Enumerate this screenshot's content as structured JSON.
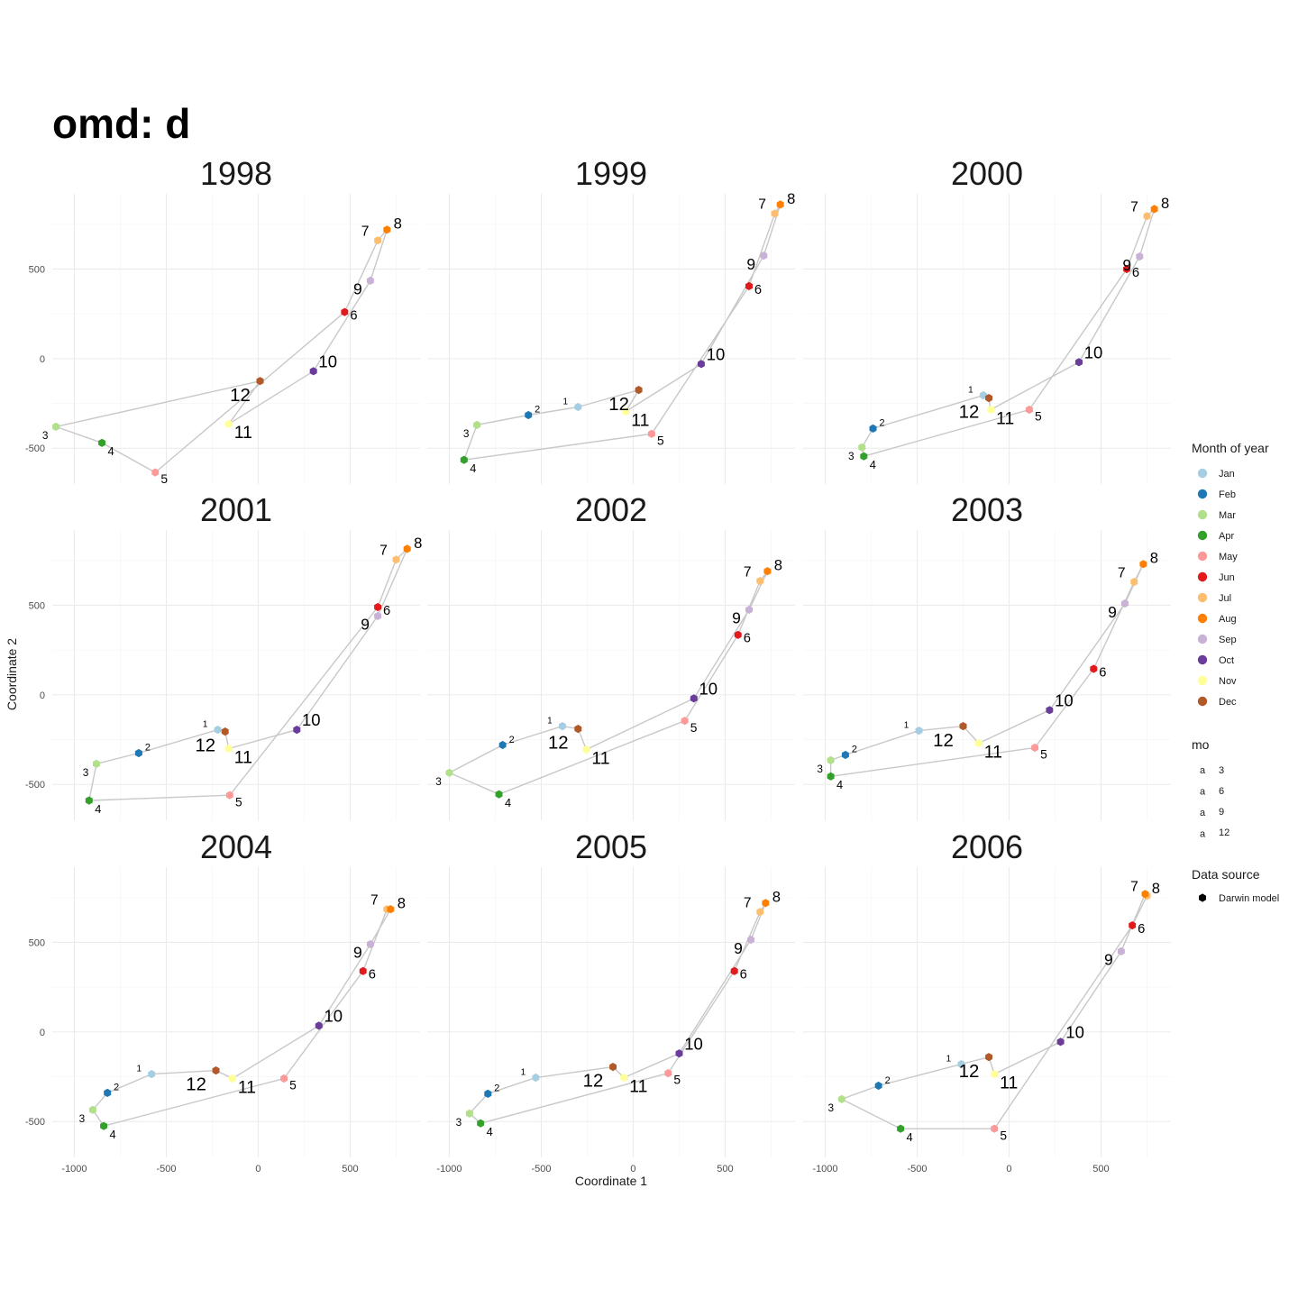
{
  "title": "omd: d",
  "chart_data": {
    "type": "scatter",
    "xlabel": "Coordinate 1",
    "ylabel": "Coordinate 2",
    "xlim": [
      -1120,
      880
    ],
    "ylim": [
      -700,
      920
    ],
    "x_ticks": [
      -1000,
      -500,
      0,
      500
    ],
    "x_tick_labels": [
      "-1000",
      "-500",
      "0",
      "500"
    ],
    "y_ticks": [
      -500,
      0,
      500
    ],
    "y_tick_labels": [
      "-500",
      "0",
      "500"
    ],
    "grid": true,
    "legend": {
      "position": "right",
      "color_title": "Month of year",
      "month_names": [
        "Jan",
        "Feb",
        "Mar",
        "Apr",
        "May",
        "Jun",
        "Jul",
        "Aug",
        "Sep",
        "Oct",
        "Nov",
        "Dec"
      ],
      "month_colors": [
        "#a6cee3",
        "#1f78b4",
        "#b2df8a",
        "#33a02c",
        "#fb9a99",
        "#e31a1c",
        "#fdbf6f",
        "#ff7f00",
        "#cab2d6",
        "#6a3d9a",
        "#ffff99",
        "#b15928"
      ],
      "size_title": "mo",
      "size_glyph": "a",
      "size_values": [
        "3",
        "6",
        "9",
        "12"
      ],
      "shape_title": "Data source",
      "shape_entries": [
        "Darwin model"
      ]
    },
    "panels": [
      {
        "label": "1998",
        "points": [
          {
            "mo": 3,
            "x": -1100,
            "y": -380
          },
          {
            "mo": 4,
            "x": -850,
            "y": -470
          },
          {
            "mo": 5,
            "x": -560,
            "y": -635
          },
          {
            "mo": 6,
            "x": 470,
            "y": 260
          },
          {
            "mo": 7,
            "x": 650,
            "y": 660
          },
          {
            "mo": 8,
            "x": 700,
            "y": 720
          },
          {
            "mo": 9,
            "x": 610,
            "y": 435
          },
          {
            "mo": 10,
            "x": 300,
            "y": -70
          },
          {
            "mo": 11,
            "x": -160,
            "y": -365
          },
          {
            "mo": 12,
            "x": 10,
            "y": -125
          }
        ]
      },
      {
        "label": "1999",
        "points": [
          {
            "mo": 1,
            "x": -300,
            "y": -270
          },
          {
            "mo": 2,
            "x": -570,
            "y": -315
          },
          {
            "mo": 3,
            "x": -850,
            "y": -370
          },
          {
            "mo": 4,
            "x": -920,
            "y": -565
          },
          {
            "mo": 5,
            "x": 100,
            "y": -420
          },
          {
            "mo": 6,
            "x": 630,
            "y": 405
          },
          {
            "mo": 7,
            "x": 770,
            "y": 810
          },
          {
            "mo": 8,
            "x": 800,
            "y": 860
          },
          {
            "mo": 9,
            "x": 710,
            "y": 575
          },
          {
            "mo": 10,
            "x": 370,
            "y": -30
          },
          {
            "mo": 11,
            "x": -40,
            "y": -295
          },
          {
            "mo": 12,
            "x": 30,
            "y": -175
          }
        ]
      },
      {
        "label": "2000",
        "points": [
          {
            "mo": 1,
            "x": -140,
            "y": -205
          },
          {
            "mo": 2,
            "x": -740,
            "y": -390
          },
          {
            "mo": 3,
            "x": -800,
            "y": -495
          },
          {
            "mo": 4,
            "x": -790,
            "y": -545
          },
          {
            "mo": 5,
            "x": 110,
            "y": -285
          },
          {
            "mo": 6,
            "x": 640,
            "y": 500
          },
          {
            "mo": 7,
            "x": 750,
            "y": 795
          },
          {
            "mo": 8,
            "x": 790,
            "y": 835
          },
          {
            "mo": 9,
            "x": 710,
            "y": 570
          },
          {
            "mo": 10,
            "x": 380,
            "y": -20
          },
          {
            "mo": 11,
            "x": -100,
            "y": -285
          },
          {
            "mo": 12,
            "x": -110,
            "y": -220
          }
        ]
      },
      {
        "label": "2001",
        "points": [
          {
            "mo": 1,
            "x": -220,
            "y": -195
          },
          {
            "mo": 2,
            "x": -650,
            "y": -325
          },
          {
            "mo": 3,
            "x": -880,
            "y": -385
          },
          {
            "mo": 4,
            "x": -920,
            "y": -590
          },
          {
            "mo": 5,
            "x": -155,
            "y": -560
          },
          {
            "mo": 6,
            "x": 650,
            "y": 490
          },
          {
            "mo": 7,
            "x": 750,
            "y": 755
          },
          {
            "mo": 8,
            "x": 810,
            "y": 815
          },
          {
            "mo": 9,
            "x": 650,
            "y": 440
          },
          {
            "mo": 10,
            "x": 210,
            "y": -195
          },
          {
            "mo": 11,
            "x": -160,
            "y": -300
          },
          {
            "mo": 12,
            "x": -180,
            "y": -205
          }
        ]
      },
      {
        "label": "2002",
        "points": [
          {
            "mo": 1,
            "x": -385,
            "y": -175
          },
          {
            "mo": 2,
            "x": -710,
            "y": -280
          },
          {
            "mo": 3,
            "x": -1000,
            "y": -435
          },
          {
            "mo": 4,
            "x": -730,
            "y": -555
          },
          {
            "mo": 5,
            "x": 280,
            "y": -145
          },
          {
            "mo": 6,
            "x": 570,
            "y": 335
          },
          {
            "mo": 7,
            "x": 690,
            "y": 635
          },
          {
            "mo": 8,
            "x": 730,
            "y": 690
          },
          {
            "mo": 9,
            "x": 630,
            "y": 475
          },
          {
            "mo": 10,
            "x": 330,
            "y": -20
          },
          {
            "mo": 11,
            "x": -255,
            "y": -305
          },
          {
            "mo": 12,
            "x": -300,
            "y": -190
          }
        ]
      },
      {
        "label": "2003",
        "points": [
          {
            "mo": 1,
            "x": -490,
            "y": -200
          },
          {
            "mo": 2,
            "x": -890,
            "y": -335
          },
          {
            "mo": 3,
            "x": -970,
            "y": -365
          },
          {
            "mo": 4,
            "x": -970,
            "y": -455
          },
          {
            "mo": 5,
            "x": 140,
            "y": -295
          },
          {
            "mo": 6,
            "x": 460,
            "y": 145
          },
          {
            "mo": 7,
            "x": 680,
            "y": 630
          },
          {
            "mo": 8,
            "x": 730,
            "y": 730
          },
          {
            "mo": 9,
            "x": 630,
            "y": 510
          },
          {
            "mo": 10,
            "x": 220,
            "y": -85
          },
          {
            "mo": 11,
            "x": -165,
            "y": -270
          },
          {
            "mo": 12,
            "x": -250,
            "y": -175
          }
        ]
      },
      {
        "label": "2004",
        "points": [
          {
            "mo": 1,
            "x": -580,
            "y": -235
          },
          {
            "mo": 2,
            "x": -820,
            "y": -340
          },
          {
            "mo": 3,
            "x": -900,
            "y": -435
          },
          {
            "mo": 4,
            "x": -840,
            "y": -525
          },
          {
            "mo": 5,
            "x": 140,
            "y": -260
          },
          {
            "mo": 6,
            "x": 570,
            "y": 340
          },
          {
            "mo": 7,
            "x": 700,
            "y": 685
          },
          {
            "mo": 8,
            "x": 720,
            "y": 685
          },
          {
            "mo": 9,
            "x": 610,
            "y": 490
          },
          {
            "mo": 10,
            "x": 330,
            "y": 35
          },
          {
            "mo": 11,
            "x": -140,
            "y": -260
          },
          {
            "mo": 12,
            "x": -230,
            "y": -215
          }
        ]
      },
      {
        "label": "2005",
        "points": [
          {
            "mo": 1,
            "x": -530,
            "y": -255
          },
          {
            "mo": 2,
            "x": -790,
            "y": -345
          },
          {
            "mo": 3,
            "x": -890,
            "y": -455
          },
          {
            "mo": 4,
            "x": -830,
            "y": -510
          },
          {
            "mo": 5,
            "x": 190,
            "y": -230
          },
          {
            "mo": 6,
            "x": 550,
            "y": 340
          },
          {
            "mo": 7,
            "x": 690,
            "y": 670
          },
          {
            "mo": 8,
            "x": 720,
            "y": 720
          },
          {
            "mo": 9,
            "x": 640,
            "y": 515
          },
          {
            "mo": 10,
            "x": 250,
            "y": -120
          },
          {
            "mo": 11,
            "x": -50,
            "y": -255
          },
          {
            "mo": 12,
            "x": -110,
            "y": -195
          }
        ]
      },
      {
        "label": "2006",
        "points": [
          {
            "mo": 1,
            "x": -260,
            "y": -180
          },
          {
            "mo": 2,
            "x": -710,
            "y": -300
          },
          {
            "mo": 3,
            "x": -910,
            "y": -375
          },
          {
            "mo": 4,
            "x": -590,
            "y": -540
          },
          {
            "mo": 5,
            "x": -80,
            "y": -540
          },
          {
            "mo": 6,
            "x": 670,
            "y": 595
          },
          {
            "mo": 7,
            "x": 750,
            "y": 760
          },
          {
            "mo": 8,
            "x": 740,
            "y": 770
          },
          {
            "mo": 9,
            "x": 610,
            "y": 450
          },
          {
            "mo": 10,
            "x": 280,
            "y": -55
          },
          {
            "mo": 11,
            "x": -80,
            "y": -235
          },
          {
            "mo": 12,
            "x": -110,
            "y": -140
          }
        ]
      }
    ]
  }
}
